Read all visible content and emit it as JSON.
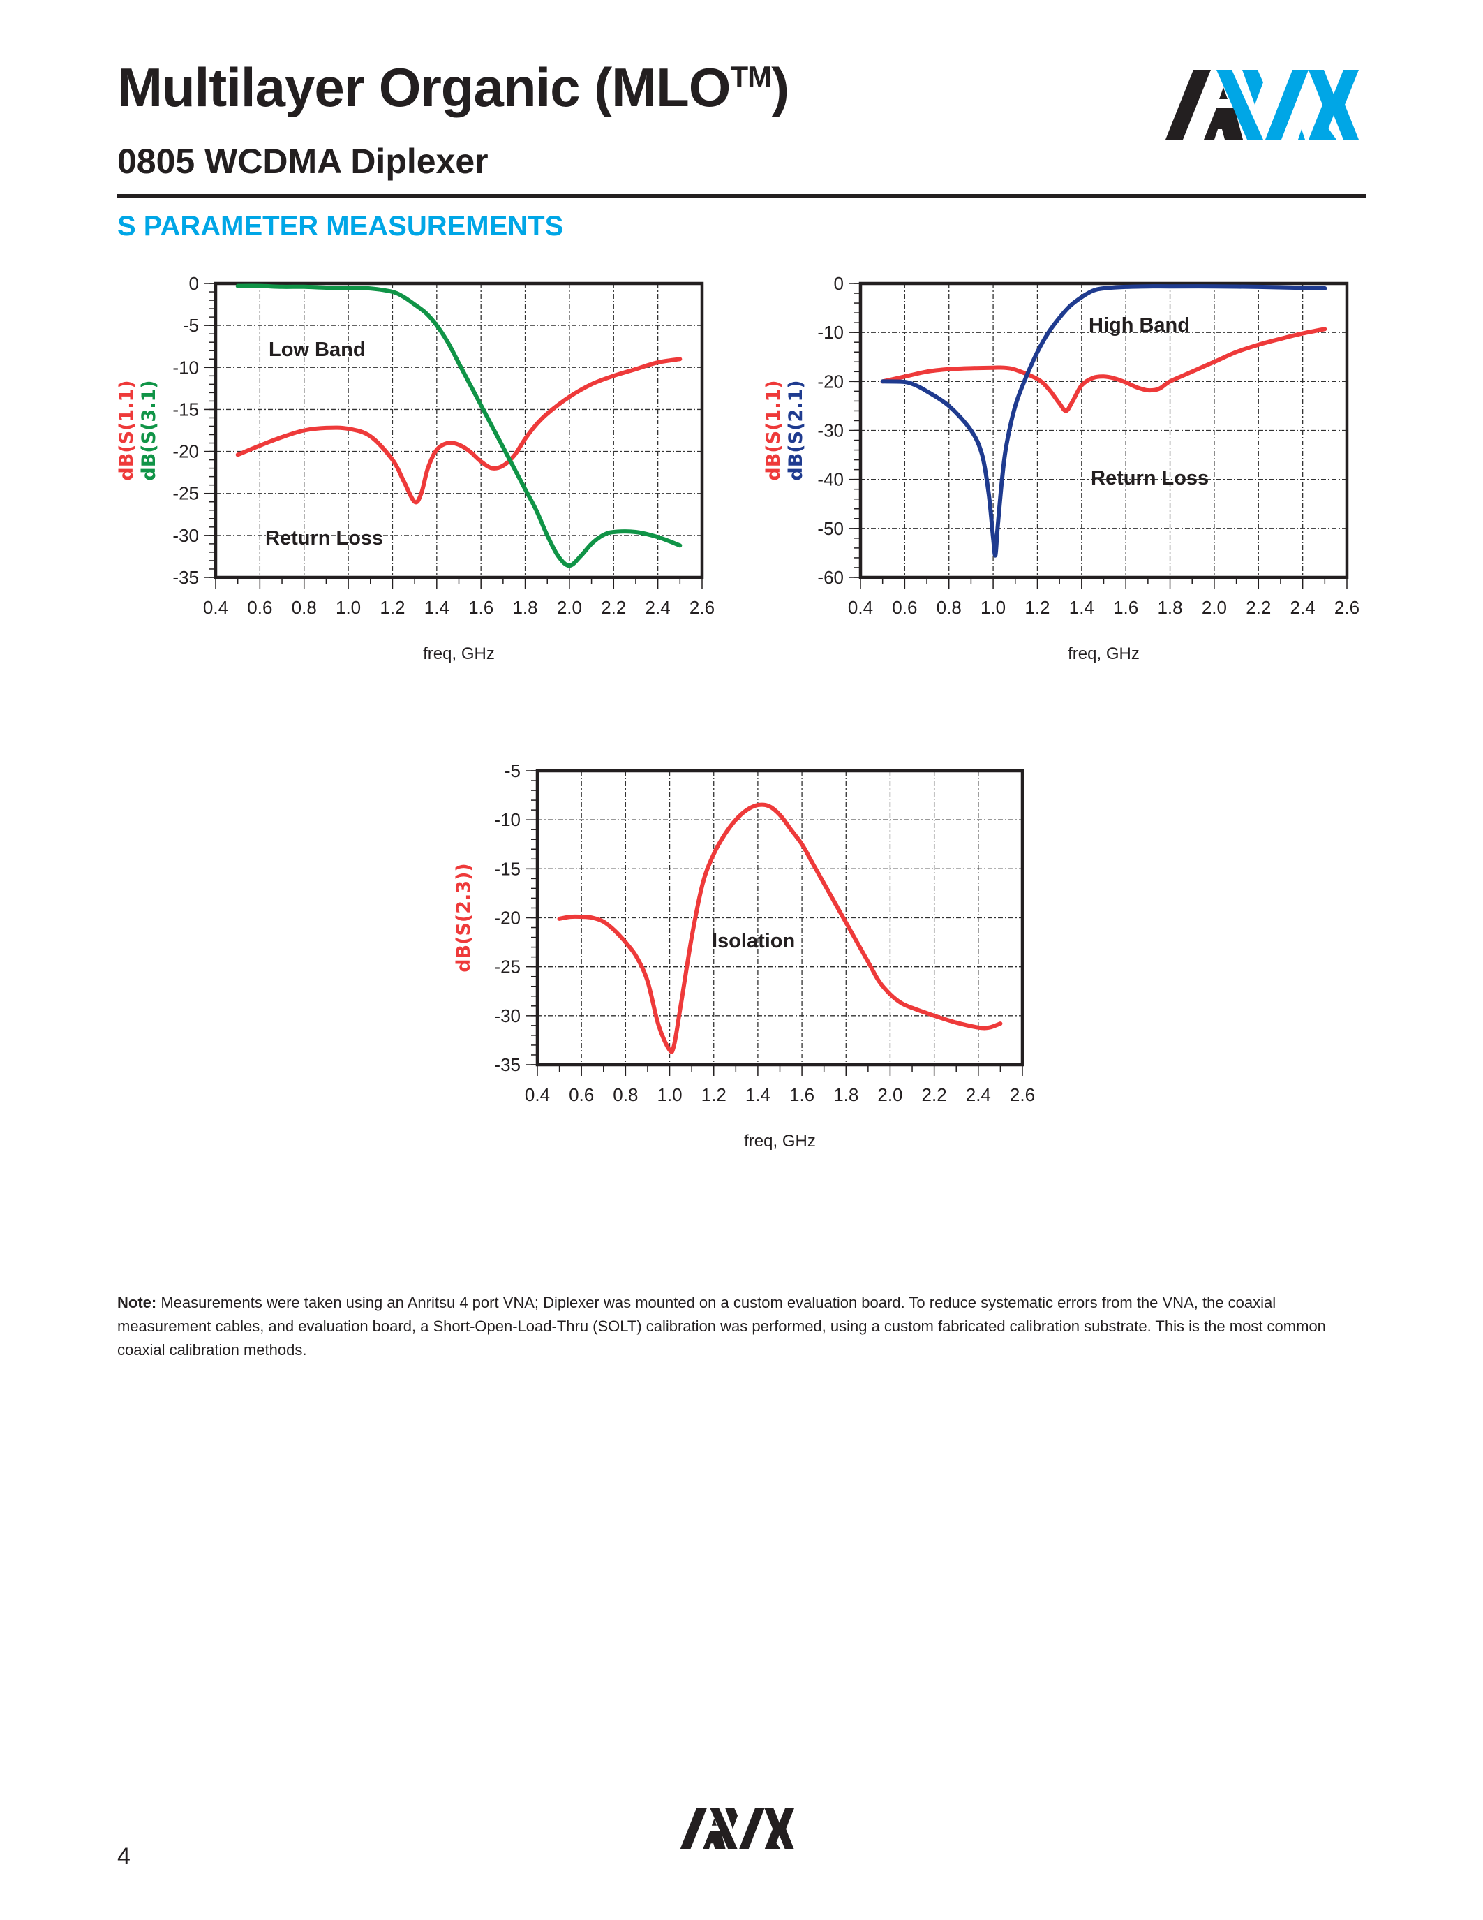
{
  "header": {
    "title": "Multilayer Organic (MLO",
    "title_tm": "TM",
    "title_close": ")",
    "subtitle": "0805 WCDMA Diplexer",
    "section_title": "S PARAMETER MEASUREMENTS",
    "logo_text": "AVX"
  },
  "colors": {
    "accent": "#00a6e6",
    "red_trace": "#ee3a3a",
    "green_trace": "#109447",
    "blue_trace": "#1f3b8f",
    "text": "#231f20"
  },
  "note": {
    "label": "Note:",
    "text": " Measurements were taken using an Anritsu 4 port VNA; Diplexer was mounted on a custom evaluation board. To reduce systematic errors from the VNA, the coaxial measurement cables, and evaluation board, a Short-Open-Load-Thru (SOLT) calibration was performed, using a custom fabricated calibration substrate. This is the most common coaxial calibration methods."
  },
  "footer": {
    "page_number": "4",
    "logo_text": "AVX"
  },
  "chart_data": [
    {
      "type": "line",
      "title": "Low Band",
      "annotation": "Return Loss",
      "xlabel": "freq, GHz",
      "ylabels": [
        "dB(S(1.1)",
        "dB(S(3.1)"
      ],
      "xlim": [
        0.4,
        2.6
      ],
      "ylim": [
        -35,
        0
      ],
      "xticks": [
        "0.4",
        "0.6",
        "0.8",
        "1.0",
        "1.2",
        "1.4",
        "1.6",
        "1.8",
        "2.0",
        "2.2",
        "2.4",
        "2.6"
      ],
      "yticks": [
        "0",
        "-5",
        "-10",
        "-15",
        "-20",
        "-25",
        "-30",
        "-35"
      ],
      "grid": true,
      "series": [
        {
          "name": "dB(S(1.1))",
          "color": "#ee3a3a",
          "x": [
            0.5,
            0.6,
            0.7,
            0.8,
            0.9,
            1.0,
            1.1,
            1.2,
            1.25,
            1.3,
            1.33,
            1.36,
            1.4,
            1.45,
            1.5,
            1.55,
            1.6,
            1.65,
            1.7,
            1.75,
            1.8,
            1.85,
            1.9,
            2.0,
            2.1,
            2.2,
            2.3,
            2.4,
            2.5
          ],
          "y": [
            -20.4,
            -19.3,
            -18.3,
            -17.5,
            -17.2,
            -17.3,
            -18.2,
            -21.0,
            -23.5,
            -26.0,
            -25.0,
            -22.0,
            -19.8,
            -19.0,
            -19.2,
            -20.0,
            -21.2,
            -22.0,
            -21.7,
            -20.5,
            -18.5,
            -16.8,
            -15.5,
            -13.5,
            -12.0,
            -11.0,
            -10.2,
            -9.4,
            -9.0
          ]
        },
        {
          "name": "dB(S(3.1))",
          "color": "#109447",
          "x": [
            0.5,
            0.6,
            0.7,
            0.8,
            0.9,
            1.0,
            1.1,
            1.2,
            1.25,
            1.3,
            1.35,
            1.4,
            1.45,
            1.5,
            1.55,
            1.6,
            1.65,
            1.7,
            1.75,
            1.8,
            1.85,
            1.9,
            1.95,
            2.0,
            2.05,
            2.1,
            2.15,
            2.2,
            2.3,
            2.4,
            2.5
          ],
          "y": [
            -0.3,
            -0.3,
            -0.4,
            -0.4,
            -0.5,
            -0.5,
            -0.6,
            -1.0,
            -1.6,
            -2.5,
            -3.5,
            -5.0,
            -7.0,
            -9.5,
            -12.0,
            -14.5,
            -17.0,
            -19.5,
            -22.0,
            -24.5,
            -27.0,
            -30.0,
            -32.5,
            -33.6,
            -32.5,
            -31.0,
            -30.0,
            -29.6,
            -29.6,
            -30.2,
            -31.2
          ]
        }
      ]
    },
    {
      "type": "line",
      "title": "High Band",
      "annotation": "Return Loss",
      "xlabel": "freq, GHz",
      "ylabels": [
        "dB(S(1.1)",
        "dB(S(2.1)"
      ],
      "xlim": [
        0.4,
        2.6
      ],
      "ylim": [
        -60,
        0
      ],
      "xticks": [
        "0.4",
        "0.6",
        "0.8",
        "1.0",
        "1.2",
        "1.4",
        "1.6",
        "1.8",
        "2.0",
        "2.2",
        "2.4",
        "2.6"
      ],
      "yticks": [
        "0",
        "-10",
        "-20",
        "-30",
        "-40",
        "-50",
        "-60"
      ],
      "grid": true,
      "series": [
        {
          "name": "dB(S(1.1))",
          "color": "#ee3a3a",
          "x": [
            0.5,
            0.6,
            0.7,
            0.8,
            0.9,
            1.0,
            1.05,
            1.1,
            1.2,
            1.25,
            1.3,
            1.33,
            1.36,
            1.4,
            1.45,
            1.5,
            1.55,
            1.6,
            1.65,
            1.7,
            1.75,
            1.8,
            1.9,
            2.0,
            2.1,
            2.2,
            2.3,
            2.4,
            2.5
          ],
          "y": [
            -20.0,
            -19.0,
            -18.0,
            -17.5,
            -17.3,
            -17.2,
            -17.2,
            -17.6,
            -19.5,
            -21.5,
            -24.5,
            -26.0,
            -24.0,
            -20.8,
            -19.3,
            -19.0,
            -19.4,
            -20.2,
            -21.2,
            -21.8,
            -21.5,
            -20.0,
            -18.0,
            -16.0,
            -14.0,
            -12.5,
            -11.3,
            -10.2,
            -9.3
          ]
        },
        {
          "name": "dB(S(2.1))",
          "color": "#1f3b8f",
          "x": [
            0.5,
            0.6,
            0.65,
            0.7,
            0.8,
            0.9,
            0.95,
            0.98,
            1.0,
            1.01,
            1.02,
            1.04,
            1.06,
            1.1,
            1.15,
            1.2,
            1.25,
            1.3,
            1.35,
            1.4,
            1.45,
            1.5,
            1.6,
            1.7,
            1.8,
            2.0,
            2.2,
            2.4,
            2.5
          ],
          "y": [
            -20.0,
            -20.1,
            -20.8,
            -22.0,
            -25.0,
            -30.0,
            -35.0,
            -43.0,
            -52.0,
            -55.5,
            -50.0,
            -40.0,
            -33.0,
            -25.0,
            -19.0,
            -14.0,
            -10.0,
            -7.0,
            -4.5,
            -2.8,
            -1.5,
            -1.0,
            -0.7,
            -0.6,
            -0.6,
            -0.6,
            -0.7,
            -0.9,
            -1.0
          ]
        }
      ]
    },
    {
      "type": "line",
      "title": "Isolation",
      "xlabel": "freq, GHz",
      "ylabels": [
        "dB(S(2.3))"
      ],
      "xlim": [
        0.4,
        2.6
      ],
      "ylim": [
        -35,
        -5
      ],
      "xticks": [
        "0.4",
        "0.6",
        "0.8",
        "1.0",
        "1.2",
        "1.4",
        "1.6",
        "1.8",
        "2.0",
        "2.2",
        "2.4",
        "2.6"
      ],
      "yticks": [
        "-5",
        "-10",
        "-15",
        "-20",
        "-25",
        "-30",
        "-35"
      ],
      "grid": true,
      "series": [
        {
          "name": "dB(S(2.3))",
          "color": "#ee3a3a",
          "x": [
            0.5,
            0.55,
            0.6,
            0.65,
            0.7,
            0.75,
            0.8,
            0.85,
            0.9,
            0.95,
            1.0,
            1.02,
            1.05,
            1.1,
            1.15,
            1.2,
            1.25,
            1.3,
            1.35,
            1.4,
            1.45,
            1.5,
            1.55,
            1.6,
            1.65,
            1.7,
            1.8,
            1.9,
            1.95,
            2.0,
            2.05,
            2.1,
            2.2,
            2.3,
            2.4,
            2.45,
            2.5
          ],
          "y": [
            -20.1,
            -19.9,
            -19.9,
            -20.0,
            -20.4,
            -21.3,
            -22.5,
            -24.0,
            -26.5,
            -31.0,
            -33.5,
            -33.0,
            -29.0,
            -22.0,
            -16.5,
            -13.5,
            -11.5,
            -10.0,
            -9.0,
            -8.5,
            -8.6,
            -9.5,
            -11.0,
            -12.5,
            -14.5,
            -16.5,
            -20.5,
            -24.5,
            -26.5,
            -27.8,
            -28.7,
            -29.2,
            -30.0,
            -30.7,
            -31.2,
            -31.2,
            -30.8
          ]
        }
      ]
    }
  ]
}
